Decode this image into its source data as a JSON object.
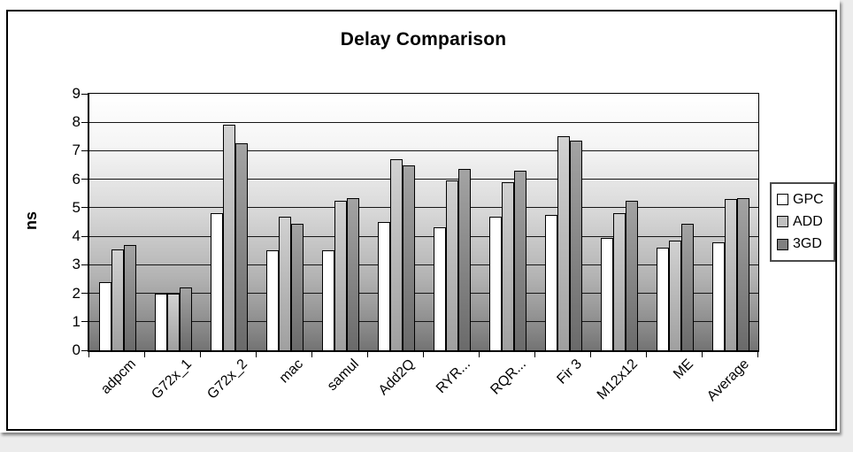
{
  "chart_data": {
    "type": "bar",
    "title": "Delay Comparison",
    "ylabel": "ns",
    "ylim": [
      0,
      9
    ],
    "yticks": [
      0,
      1,
      2,
      3,
      4,
      5,
      6,
      7,
      8,
      9
    ],
    "grid": true,
    "legend_position": "right",
    "categories": [
      "adpcm",
      "G72x_1",
      "G72x_2",
      "mac",
      "samul",
      "Add2Q",
      "RYR...",
      "RQR...",
      "Fir 3",
      "M12x12",
      "ME",
      "Average"
    ],
    "series": [
      {
        "name": "GPC",
        "color": "#ffffff",
        "values": [
          2.4,
          2.0,
          4.8,
          3.5,
          3.5,
          4.5,
          4.3,
          4.7,
          4.75,
          3.95,
          3.6,
          3.8
        ]
      },
      {
        "name": "ADD",
        "color": "#c0c0c0",
        "values": [
          3.55,
          2.0,
          7.9,
          4.7,
          5.25,
          6.7,
          5.95,
          5.9,
          7.5,
          4.8,
          3.85,
          5.3
        ]
      },
      {
        "name": "3GD",
        "color": "#808080",
        "values": [
          3.7,
          2.2,
          7.25,
          4.45,
          5.35,
          6.5,
          6.35,
          6.3,
          7.35,
          5.25,
          4.45,
          5.35
        ]
      }
    ],
    "plot_background": {
      "top": "#ffffff",
      "bottom": "#737373"
    },
    "gridline_color": "#161616"
  }
}
